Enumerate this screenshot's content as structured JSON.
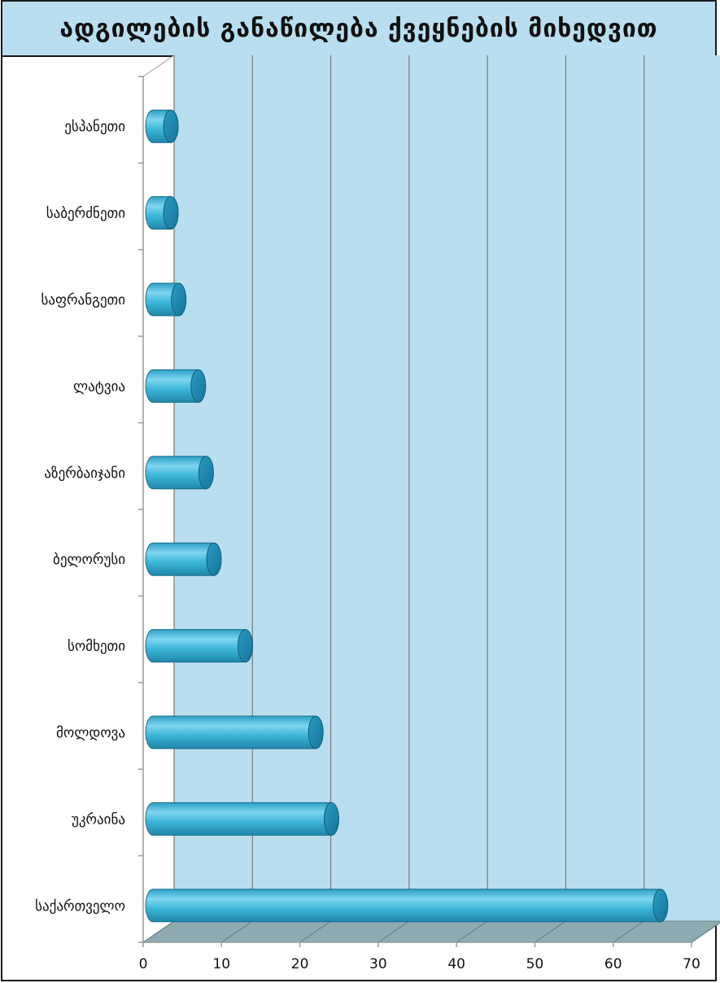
{
  "chart_data": {
    "type": "bar",
    "orientation": "horizontal",
    "title": "ადგილების განაწილება ქვეყნების მიხედვით",
    "categories": [
      "საქართველო",
      "უკრაინა",
      "მოლდოვა",
      "სომხეთი",
      "ბელორუსი",
      "აზერბაიჯანი",
      "ლატვია",
      "საფრანგეთი",
      "საბერძნეთი",
      "ესპანეთი"
    ],
    "values": [
      65,
      23,
      21,
      12,
      8,
      7,
      6,
      3.5,
      2.5,
      2.5
    ],
    "xlim": [
      0,
      70
    ],
    "xticks": [
      "0",
      "10",
      "20",
      "30",
      "40",
      "50",
      "60",
      "70"
    ],
    "grid": true,
    "legend": "none",
    "colors": {
      "bar": "#3bb5d8",
      "bar_highlight": "#7fd6ef",
      "bar_dark": "#1f86a8",
      "wall": "#b9def0",
      "floor": "#8eabb2",
      "grid": "#808080"
    }
  }
}
